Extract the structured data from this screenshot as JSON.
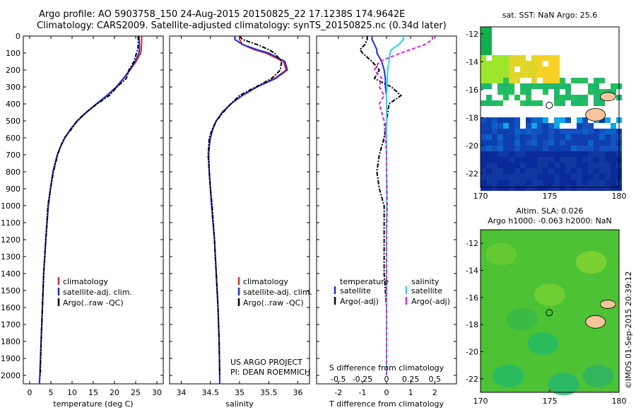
{
  "header": {
    "line1": "Argo profile: AO 5903758_150 24-Aug-2015 20150825_22 17.1238S 174.9642E",
    "line2": "Climatology: CARS2009. Satellite-adjusted climatology: synTS_20150825.nc (0.34d later)"
  },
  "credit": "©IMOS 01-Sep-2015 20:39:12",
  "project": {
    "line1": "US ARGO PROJECT",
    "line2": "PI: DEAN ROEMMICH"
  },
  "colors": {
    "clim": "#e8261f",
    "sat": "#1c2fd6",
    "argo": "#000000",
    "sat_sal": "#22d8e8",
    "argo_sal": "#e020e0"
  },
  "depth_axis": {
    "ticks": [
      0,
      100,
      200,
      300,
      400,
      500,
      600,
      700,
      800,
      900,
      1000,
      1100,
      1200,
      1300,
      1400,
      1500,
      1600,
      1700,
      1800,
      1900,
      2000
    ],
    "range": [
      0,
      2050
    ]
  },
  "chart_data": [
    {
      "type": "line",
      "id": "temperature",
      "xlabel": "temperature (deg C)",
      "xlim": [
        -1.5,
        31.5
      ],
      "xticks": [
        0,
        5,
        10,
        15,
        20,
        25,
        30
      ],
      "legend": [
        "climatology",
        "satellite-adj. clim.",
        "Argo(..raw -QC)"
      ],
      "depth": [
        0,
        20,
        50,
        80,
        100,
        150,
        200,
        250,
        300,
        350,
        400,
        450,
        500,
        550,
        600,
        650,
        700,
        800,
        900,
        1000,
        1200,
        1400,
        1600,
        1800,
        2000,
        2050
      ],
      "series": [
        {
          "name": "climatology",
          "values": [
            26.4,
            26.4,
            26.4,
            26.3,
            26.2,
            25.1,
            23.7,
            22.2,
            20.5,
            18.3,
            15.8,
            13.4,
            11.3,
            9.6,
            8.3,
            7.3,
            6.5,
            5.5,
            4.9,
            4.4,
            3.8,
            3.3,
            3.0,
            2.7,
            2.4,
            2.3
          ]
        },
        {
          "name": "satellite-adj. clim.",
          "values": [
            25.8,
            25.8,
            25.9,
            25.9,
            25.8,
            24.9,
            23.6,
            22.1,
            20.4,
            18.2,
            15.7,
            13.3,
            11.2,
            9.6,
            8.3,
            7.3,
            6.5,
            5.5,
            4.9,
            4.4,
            3.8,
            3.3,
            3.0,
            2.7,
            2.4,
            2.3
          ]
        },
        {
          "name": "Argo(..raw -QC)",
          "values": [
            25.6,
            25.6,
            25.6,
            25.5,
            25.2,
            24.6,
            23.4,
            22.8,
            20.6,
            18.8,
            15.9,
            13.3,
            11.2,
            9.8,
            8.2,
            7.3,
            6.6,
            5.6,
            4.9,
            4.3,
            3.8,
            3.3,
            3.0,
            2.7,
            2.5,
            null
          ]
        }
      ]
    },
    {
      "type": "line",
      "id": "salinity",
      "xlabel": "salinity",
      "xlim": [
        33.8,
        36.2
      ],
      "xticks": [
        34,
        34.5,
        35,
        35.5,
        36
      ],
      "legend": [
        "climatology",
        "satellite-adj. clim.",
        "Argo(..raw -QC)"
      ],
      "depth": [
        0,
        20,
        50,
        80,
        100,
        150,
        200,
        250,
        300,
        350,
        400,
        450,
        500,
        550,
        600,
        650,
        700,
        800,
        900,
        1000,
        1200,
        1400,
        1600,
        1800,
        2000,
        2050
      ],
      "series": [
        {
          "name": "climatology",
          "values": [
            35.0,
            35.0,
            35.05,
            35.25,
            35.45,
            35.75,
            35.8,
            35.6,
            35.3,
            35.05,
            34.85,
            34.7,
            34.6,
            34.54,
            34.5,
            34.48,
            34.47,
            34.48,
            34.5,
            34.52,
            34.57,
            34.6,
            34.63,
            34.65,
            34.66,
            34.66
          ]
        },
        {
          "name": "satellite-adj. clim.",
          "values": [
            34.92,
            34.92,
            35.05,
            35.3,
            35.5,
            35.78,
            35.82,
            35.62,
            35.3,
            35.05,
            34.85,
            34.7,
            34.6,
            34.54,
            34.5,
            34.48,
            34.47,
            34.48,
            34.5,
            34.52,
            34.57,
            34.6,
            34.63,
            34.65,
            34.66,
            34.66
          ]
        },
        {
          "name": "Argo(..raw -QC)",
          "values": [
            35.0,
            35.05,
            35.3,
            35.5,
            35.6,
            35.72,
            35.7,
            35.55,
            35.28,
            35.0,
            34.85,
            34.72,
            34.6,
            34.53,
            34.48,
            34.47,
            34.46,
            34.48,
            34.5,
            34.53,
            34.57,
            34.6,
            34.63,
            34.65,
            34.66,
            null
          ]
        }
      ]
    },
    {
      "type": "line",
      "id": "difference",
      "xlabel": "T difference from climatology",
      "x2label": "S difference from climatology",
      "xlim": [
        -2.9,
        2.9
      ],
      "xticks": [
        -2,
        -1,
        0,
        1,
        2
      ],
      "x2ticks": [
        "-0.5",
        "-0.25",
        "0",
        "0.25",
        "0.5"
      ],
      "legend_temperature": {
        "head": "temperature",
        "sat": "satellite",
        "argo": "Argo(-adj)"
      },
      "legend_salinity": {
        "head": "salinity",
        "sat": "satellite",
        "argo": "Argo(-adj)"
      },
      "depth": [
        0,
        20,
        50,
        80,
        100,
        150,
        200,
        250,
        300,
        350,
        400,
        500,
        600,
        700,
        800,
        900,
        1000,
        1200,
        1400,
        1600,
        1800,
        2000
      ],
      "series": [
        {
          "name": "temperature satellite",
          "values": [
            -0.6,
            -0.6,
            -0.5,
            -0.4,
            -0.4,
            -0.2,
            -0.1,
            -0.05,
            -0.05,
            0,
            0,
            0,
            0,
            0,
            0,
            0,
            0,
            0,
            0,
            0,
            0,
            0
          ]
        },
        {
          "name": "temperature Argo(-adj)",
          "values": [
            -0.8,
            -0.8,
            -0.9,
            -1.1,
            -1.0,
            -0.6,
            -0.3,
            -0.5,
            0.2,
            0.6,
            0.1,
            0.0,
            -0.1,
            -0.3,
            -0.4,
            -0.3,
            -0.1,
            -0.1,
            -0.1,
            0.0,
            0.0,
            0.0
          ]
        },
        {
          "name": "salinity satellite",
          "values": [
            0.7,
            0.7,
            0.5,
            0.2,
            0.15,
            0.1,
            0.05,
            0.03,
            0.02,
            0,
            0,
            0,
            0,
            0,
            0,
            0,
            0,
            0,
            0,
            0,
            0,
            0
          ]
        },
        {
          "name": "salinity Argo(-adj)",
          "values": [
            1.9,
            1.9,
            1.6,
            1.0,
            0.6,
            -0.3,
            -0.5,
            -0.2,
            -0.3,
            -0.1,
            -0.3,
            -0.1,
            -0.05,
            0,
            0,
            0.02,
            0.03,
            0,
            0,
            0,
            0,
            0
          ]
        }
      ]
    },
    {
      "type": "heatmap",
      "id": "sst_map",
      "title": "sat. SST: NaN Argo: 25.6",
      "xlim": [
        170,
        180
      ],
      "ylim": [
        -23,
        -11.5
      ],
      "xticks": [
        170,
        175,
        180
      ],
      "yticks": [
        -12,
        -14,
        -16,
        -18,
        -20,
        -22
      ],
      "float_position": {
        "lon": 174.9642,
        "lat": -17.1238
      }
    },
    {
      "type": "heatmap",
      "id": "sla_map",
      "title": "Altim. SLA: 0.026",
      "subtitle": "Argo h1000: -0.063 h2000: NaN",
      "xlim": [
        170,
        180
      ],
      "ylim": [
        -23,
        -11
      ],
      "xticks": [
        170,
        175,
        180
      ],
      "yticks": [
        -12,
        -14,
        -16,
        -18,
        -20,
        -22
      ],
      "float_position": {
        "lon": 174.9642,
        "lat": -17.1238
      }
    }
  ]
}
